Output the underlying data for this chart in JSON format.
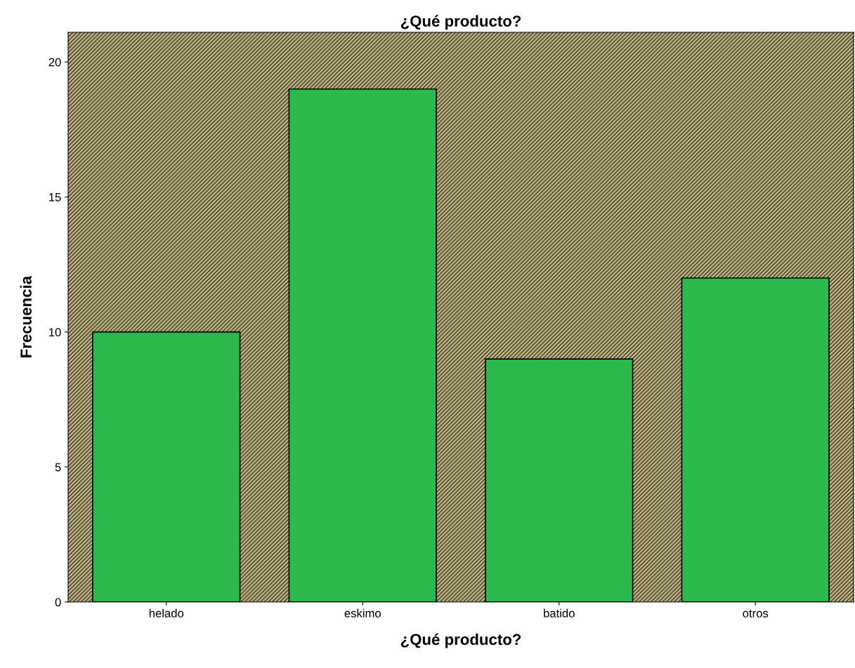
{
  "chart_data": {
    "type": "bar",
    "title": "¿Qué producto?",
    "xlabel": "¿Qué producto?",
    "ylabel": "Frecuencia",
    "categories": [
      "helado",
      "eskimo",
      "batido",
      "otros"
    ],
    "values": [
      10,
      19,
      9,
      12
    ],
    "color": "#2db84b",
    "ylim": [
      0,
      21.1
    ],
    "yticks": [
      0,
      5,
      10,
      15,
      20
    ],
    "grid": false,
    "legend": false
  }
}
